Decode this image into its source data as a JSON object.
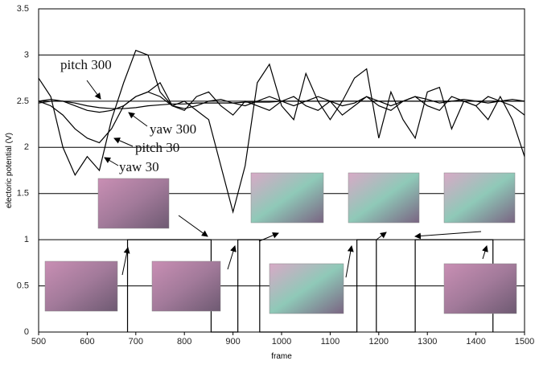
{
  "chart_data": {
    "type": "line",
    "x_label": "frame",
    "y_label": "electoric potential (V)",
    "xlim": [
      500,
      1500
    ],
    "ylim": [
      0,
      3.5
    ],
    "xticks": [
      500,
      600,
      700,
      800,
      900,
      1000,
      1100,
      1200,
      1300,
      1400,
      1500
    ],
    "yticks": [
      0,
      0.5,
      1,
      1.5,
      2,
      2.5,
      3,
      3.5
    ],
    "grid": true,
    "x": [
      500,
      525,
      550,
      575,
      600,
      625,
      650,
      675,
      700,
      725,
      750,
      775,
      800,
      825,
      850,
      875,
      900,
      925,
      950,
      975,
      1000,
      1025,
      1050,
      1075,
      1100,
      1125,
      1150,
      1175,
      1200,
      1225,
      1250,
      1275,
      1300,
      1325,
      1350,
      1375,
      1400,
      1425,
      1450,
      1475,
      1500
    ],
    "series": [
      {
        "name": "pitch 300",
        "color": "#000000",
        "values": [
          2.48,
          2.5,
          2.5,
          2.48,
          2.45,
          2.43,
          2.42,
          2.42,
          2.43,
          2.45,
          2.46,
          2.47,
          2.47,
          2.48,
          2.48,
          2.48,
          2.48,
          2.49,
          2.49,
          2.49,
          2.5,
          2.5,
          2.5,
          2.5,
          2.5,
          2.5,
          2.5,
          2.5,
          2.5,
          2.5,
          2.5,
          2.5,
          2.5,
          2.5,
          2.5,
          2.5,
          2.5,
          2.5,
          2.5,
          2.5,
          2.5
        ]
      },
      {
        "name": "yaw 300",
        "color": "#000000",
        "values": [
          2.5,
          2.52,
          2.5,
          2.45,
          2.4,
          2.38,
          2.4,
          2.45,
          2.55,
          2.6,
          2.55,
          2.45,
          2.42,
          2.45,
          2.5,
          2.52,
          2.48,
          2.45,
          2.5,
          2.55,
          2.5,
          2.45,
          2.5,
          2.55,
          2.5,
          2.45,
          2.48,
          2.55,
          2.5,
          2.45,
          2.5,
          2.55,
          2.52,
          2.48,
          2.5,
          2.52,
          2.5,
          2.48,
          2.5,
          2.52,
          2.5
        ]
      },
      {
        "name": "pitch 30",
        "color": "#000000",
        "values": [
          2.5,
          2.45,
          2.35,
          2.2,
          2.1,
          2.05,
          2.2,
          2.45,
          2.55,
          2.6,
          2.7,
          2.45,
          2.4,
          2.55,
          2.6,
          2.45,
          2.35,
          2.5,
          2.45,
          2.4,
          2.5,
          2.55,
          2.45,
          2.4,
          2.5,
          2.35,
          2.45,
          2.55,
          2.45,
          2.4,
          2.5,
          2.55,
          2.45,
          2.4,
          2.55,
          2.5,
          2.45,
          2.55,
          2.5,
          2.45,
          2.35
        ]
      },
      {
        "name": "yaw 30",
        "color": "#000000",
        "values": [
          2.75,
          2.55,
          2.0,
          1.7,
          1.9,
          1.75,
          2.3,
          2.7,
          3.05,
          3.0,
          2.6,
          2.45,
          2.5,
          2.4,
          2.3,
          1.8,
          1.3,
          1.8,
          2.7,
          2.9,
          2.45,
          2.3,
          2.8,
          2.5,
          2.3,
          2.5,
          2.75,
          2.85,
          2.1,
          2.6,
          2.3,
          2.1,
          2.6,
          2.65,
          2.2,
          2.5,
          2.45,
          2.3,
          2.55,
          2.3,
          1.9
        ]
      }
    ],
    "steps": {
      "color": "#000000",
      "x": [
        683,
        683,
        855,
        855,
        910,
        910,
        955,
        955,
        1155,
        1155,
        1195,
        1195,
        1275,
        1275,
        1435,
        1435
      ],
      "values": [
        0,
        1,
        1,
        0,
        0,
        1,
        1,
        0,
        0,
        1,
        1,
        0,
        0,
        1,
        1,
        0
      ]
    }
  }
}
